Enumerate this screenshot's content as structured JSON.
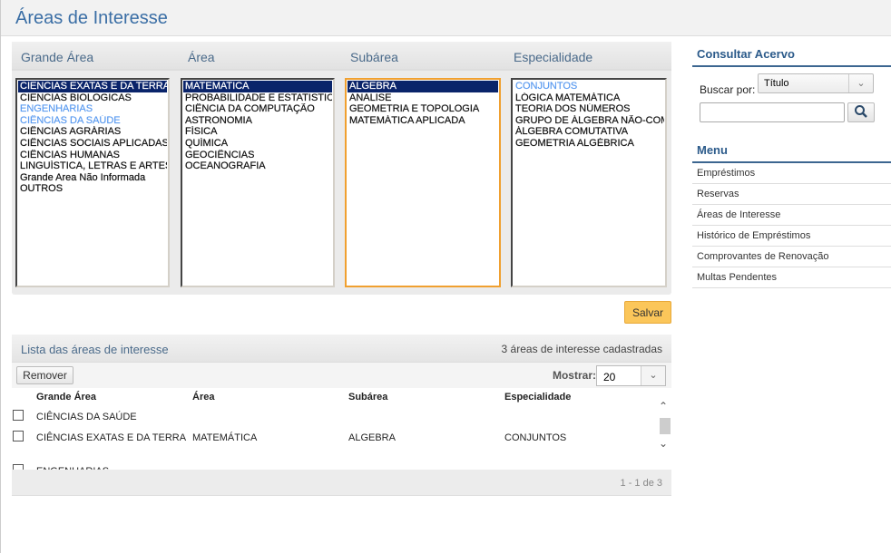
{
  "header": {
    "title": "Áreas de Interesse"
  },
  "selector": {
    "columns": [
      "Grande Área",
      "Área",
      "Subárea",
      "Especialidade"
    ],
    "grande_area": [
      {
        "label": "CIENCIAS EXATAS E DA TERRA",
        "state": "selected"
      },
      {
        "label": "CIENCIAS BIOLOGICAS"
      },
      {
        "label": "ENGENHARIAS",
        "state": "highlighted"
      },
      {
        "label": "CIÊNCIAS DA SAÚDE",
        "state": "highlighted"
      },
      {
        "label": "CIÊNCIAS AGRÁRIAS"
      },
      {
        "label": "CIÊNCIAS SOCIAIS APLICADAS"
      },
      {
        "label": "CIÊNCIAS HUMANAS"
      },
      {
        "label": "LINGUÍSTICA, LETRAS E ARTES"
      },
      {
        "label": "Grande Area Não Informada"
      },
      {
        "label": "OUTROS"
      }
    ],
    "area": [
      {
        "label": "MATEMATICA",
        "state": "selected"
      },
      {
        "label": "PROBABILIDADE E ESTATISTICA"
      },
      {
        "label": "CIÊNCIA DA COMPUTAÇÃO"
      },
      {
        "label": "ASTRONOMIA"
      },
      {
        "label": "FÍSICA"
      },
      {
        "label": "QUÍMICA"
      },
      {
        "label": "GEOCIÊNCIAS"
      },
      {
        "label": "OCEANOGRAFIA"
      }
    ],
    "subarea": [
      {
        "label": "ALGEBRA",
        "state": "selected"
      },
      {
        "label": "ANALISE"
      },
      {
        "label": "GEOMETRIA E TOPOLOGIA"
      },
      {
        "label": "MATEMÁTICA APLICADA"
      }
    ],
    "especialidade": [
      {
        "label": "CONJUNTOS",
        "state": "highlighted"
      },
      {
        "label": "LÓGICA MATEMÁTICA"
      },
      {
        "label": "TEORIA DOS NÚMEROS"
      },
      {
        "label": "GRUPO DE ÁLGEBRA NÃO-COMUTATIVA"
      },
      {
        "label": "ÁLGEBRA COMUTATIVA"
      },
      {
        "label": "GEOMETRIA ALGÉBRICA"
      }
    ],
    "save_label": "Salvar"
  },
  "list": {
    "title": "Lista das áreas de interesse",
    "count": "3 áreas de interesse cadastradas",
    "remove_label": "Remover",
    "show_label": "Mostrar:",
    "show_value": "20",
    "headers": [
      "Grande Área",
      "Área",
      "Subárea",
      "Especialidade"
    ],
    "rows": [
      [
        "CIÊNCIAS DA SAÚDE",
        "",
        "",
        ""
      ],
      [
        "CIÊNCIAS EXATAS E DA TERRA",
        "MATEMÁTICA",
        "ALGEBRA",
        "CONJUNTOS"
      ],
      [
        "ENGENHARIAS",
        "",
        "",
        ""
      ]
    ],
    "pagination": "1 - 1 de 3"
  },
  "sidebar": {
    "search_title": "Consultar Acervo",
    "search_by_label": "Buscar por:",
    "search_by_value": "Título",
    "search_value": "",
    "menu_title": "Menu",
    "menu": [
      "Empréstimos",
      "Reservas",
      "Áreas de Interesse",
      "Histórico de Empréstimos",
      "Comprovantes de Renovação",
      "Multas Pendentes"
    ]
  },
  "colors": {
    "accent": "#3a6ea5",
    "selected": "#0a246a",
    "highlight": "#5b9bf0",
    "save": "#fbc65a",
    "focus": "#f0a030"
  }
}
